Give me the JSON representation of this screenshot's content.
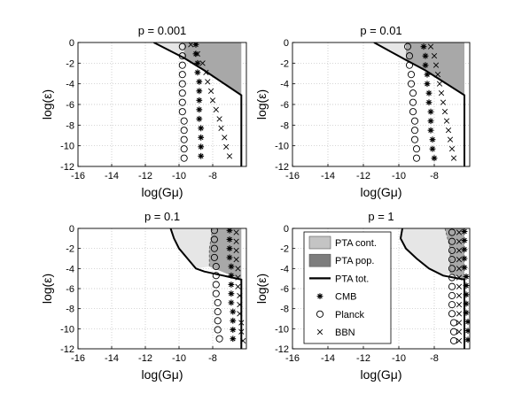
{
  "chart_data": [
    {
      "type": "scatter",
      "title": "p = 0.001",
      "xlabel": "log(Gμ)",
      "ylabel": "log(ε)",
      "xlim": [
        -16,
        -6
      ],
      "ylim": [
        -12,
        0
      ],
      "xticks": [
        "-16",
        "-14",
        "-12",
        "-10",
        "-8"
      ],
      "yticks": [
        "0",
        "-2",
        "-4",
        "-6",
        "-8",
        "-10",
        "-12"
      ],
      "grid": true,
      "regions": {
        "PTA cont.": [
          [
            -11.5,
            0
          ],
          [
            -10.3,
            -0.9
          ],
          [
            -9.7,
            -1.5
          ],
          [
            -9.7,
            0
          ]
        ],
        "PTA pop.": [
          [
            -9.7,
            0
          ],
          [
            -9.7,
            -1.5
          ],
          [
            -8.5,
            -2.7
          ],
          [
            -6.3,
            -5.1
          ],
          [
            -6.3,
            0
          ]
        ],
        "PTA tot.": [
          [
            -11.5,
            0
          ],
          [
            -9.7,
            -1.5
          ],
          [
            -8.5,
            -2.7
          ],
          [
            -6.3,
            -5.1
          ],
          [
            -6.3,
            -12
          ]
        ]
      },
      "series": [
        {
          "name": "CMB",
          "marker": "*",
          "x": [
            -9.0,
            -9.0,
            -8.9,
            -8.9,
            -8.8,
            -8.8,
            -8.8,
            -8.8,
            -8.8,
            -8.7,
            -8.7,
            -8.7,
            -8.7
          ],
          "y": [
            -0.2,
            -1.1,
            -2.0,
            -2.9,
            -3.8,
            -4.7,
            -5.6,
            -6.5,
            -7.4,
            -8.3,
            -9.2,
            -10.1,
            -11.0
          ]
        },
        {
          "name": "Planck",
          "marker": "o",
          "x": [
            -9.8,
            -9.8,
            -9.8,
            -9.8,
            -9.8,
            -9.8,
            -9.8,
            -9.8,
            -9.7,
            -9.7,
            -9.7,
            -9.7,
            -9.7
          ],
          "y": [
            -0.4,
            -1.3,
            -2.2,
            -3.1,
            -4.0,
            -4.9,
            -5.8,
            -6.7,
            -7.6,
            -8.5,
            -9.4,
            -10.3,
            -11.2
          ]
        },
        {
          "name": "BBN",
          "marker": "x",
          "x": [
            -9.3,
            -8.9,
            -8.6,
            -8.4,
            -8.3,
            -8.1,
            -8.0,
            -7.8,
            -7.6,
            -7.5,
            -7.3,
            -7.2,
            -7.0
          ],
          "y": [
            -0.2,
            -1.1,
            -2.0,
            -2.9,
            -3.8,
            -4.7,
            -5.6,
            -6.5,
            -7.4,
            -8.3,
            -9.2,
            -10.1,
            -11.0
          ]
        }
      ]
    },
    {
      "type": "scatter",
      "title": "p = 0.01",
      "xlabel": "log(Gμ)",
      "ylabel": "log(ε)",
      "xlim": [
        -16,
        -6
      ],
      "ylim": [
        -12,
        0
      ],
      "xticks": [
        "-16",
        "-14",
        "-12",
        "-10",
        "-8"
      ],
      "yticks": [
        "0",
        "-2",
        "-4",
        "-6",
        "-8",
        "-10",
        "-12"
      ],
      "grid": true,
      "regions": {
        "PTA cont.": [
          [
            -11.4,
            0
          ],
          [
            -10.4,
            -0.8
          ],
          [
            -9.6,
            -1.7
          ],
          [
            -9.6,
            0
          ]
        ],
        "PTA pop.": [
          [
            -9.6,
            0
          ],
          [
            -9.6,
            -1.7
          ],
          [
            -8.5,
            -2.7
          ],
          [
            -6.3,
            -5.1
          ],
          [
            -6.3,
            0
          ]
        ],
        "PTA tot.": [
          [
            -11.4,
            0
          ],
          [
            -9.6,
            -1.7
          ],
          [
            -8.5,
            -2.7
          ],
          [
            -6.3,
            -5.1
          ],
          [
            -6.3,
            -12
          ]
        ]
      },
      "series": [
        {
          "name": "CMB",
          "marker": "*",
          "x": [
            -8.6,
            -8.5,
            -8.5,
            -8.4,
            -8.4,
            -8.3,
            -8.3,
            -8.2,
            -8.2,
            -8.2,
            -8.1,
            -8.1,
            -8.0
          ],
          "y": [
            -0.4,
            -1.3,
            -2.2,
            -3.1,
            -4.0,
            -4.9,
            -5.8,
            -6.7,
            -7.6,
            -8.5,
            -9.4,
            -10.3,
            -11.2
          ]
        },
        {
          "name": "Planck",
          "marker": "o",
          "x": [
            -9.5,
            -9.4,
            -9.4,
            -9.3,
            -9.3,
            -9.2,
            -9.2,
            -9.2,
            -9.1,
            -9.1,
            -9.1,
            -9.0,
            -9.0
          ],
          "y": [
            -0.4,
            -1.3,
            -2.2,
            -3.1,
            -4.0,
            -4.9,
            -5.8,
            -6.7,
            -7.6,
            -8.5,
            -9.4,
            -10.3,
            -11.2
          ]
        },
        {
          "name": "BBN",
          "marker": "x",
          "x": [
            -8.2,
            -8.0,
            -7.9,
            -7.8,
            -7.7,
            -7.6,
            -7.5,
            -7.4,
            -7.3,
            -7.2,
            -7.1,
            -7.0,
            -6.9
          ],
          "y": [
            -0.4,
            -1.3,
            -2.2,
            -3.1,
            -4.0,
            -4.9,
            -5.8,
            -6.7,
            -7.6,
            -8.5,
            -9.4,
            -10.3,
            -11.2
          ]
        }
      ]
    },
    {
      "type": "scatter",
      "title": "p = 0.1",
      "xlabel": "log(Gμ)",
      "ylabel": "log(ε)",
      "xlim": [
        -16,
        -6
      ],
      "ylim": [
        -12,
        0
      ],
      "xticks": [
        "-16",
        "-14",
        "-12",
        "-10",
        "-8"
      ],
      "yticks": [
        "0",
        "-2",
        "-4",
        "-6",
        "-8",
        "-10",
        "-12"
      ],
      "grid": true,
      "regions": {
        "PTA cont.": [
          [
            -10.5,
            0
          ],
          [
            -10.3,
            -1.0
          ],
          [
            -10.0,
            -2.0
          ],
          [
            -9.5,
            -3.0
          ],
          [
            -9.0,
            -4.0
          ],
          [
            -8.2,
            -3.8
          ],
          [
            -8.2,
            -2.0
          ],
          [
            -8.0,
            0
          ]
        ],
        "PTA pop.": [
          [
            -8.0,
            0
          ],
          [
            -8.2,
            -2.0
          ],
          [
            -8.2,
            -3.8
          ],
          [
            -6.3,
            -5.1
          ],
          [
            -6.3,
            0
          ]
        ],
        "PTA tot.": [
          [
            -10.5,
            0
          ],
          [
            -10.3,
            -1.0
          ],
          [
            -10.0,
            -2.0
          ],
          [
            -9.5,
            -3.0
          ],
          [
            -9.0,
            -4.0
          ],
          [
            -8.5,
            -4.3
          ],
          [
            -6.3,
            -5.1
          ],
          [
            -6.3,
            -12
          ]
        ]
      },
      "series": [
        {
          "name": "CMB",
          "marker": "*",
          "x": [
            -7.0,
            -7.0,
            -7.0,
            -7.0,
            -6.9,
            -6.9,
            -6.9,
            -6.9,
            -6.9,
            -6.8,
            -6.8,
            -6.8,
            -6.8
          ],
          "y": [
            -0.2,
            -1.1,
            -2.0,
            -2.9,
            -3.8,
            -4.7,
            -5.6,
            -6.5,
            -7.4,
            -8.3,
            -9.2,
            -10.1,
            -11.0
          ]
        },
        {
          "name": "Planck",
          "marker": "o",
          "x": [
            -7.9,
            -7.9,
            -7.9,
            -7.9,
            -7.8,
            -7.8,
            -7.8,
            -7.8,
            -7.7,
            -7.7,
            -7.7,
            -7.7,
            -7.6
          ],
          "y": [
            -0.2,
            -1.1,
            -2.0,
            -2.9,
            -3.8,
            -4.7,
            -5.6,
            -6.5,
            -7.4,
            -8.3,
            -9.2,
            -10.1,
            -11.0
          ]
        },
        {
          "name": "BBN",
          "marker": "x",
          "x": [
            -6.6,
            -6.6,
            -6.6,
            -6.6,
            -6.5,
            -6.5,
            -6.5,
            -6.4,
            -6.4,
            -6.4,
            -6.3,
            -6.3,
            -6.2
          ],
          "y": [
            -0.4,
            -1.3,
            -2.2,
            -3.1,
            -4.0,
            -4.9,
            -5.8,
            -6.7,
            -7.6,
            -8.5,
            -9.4,
            -10.3,
            -11.2
          ]
        }
      ]
    },
    {
      "type": "scatter",
      "title": "p = 1",
      "xlabel": "log(Gμ)",
      "ylabel": "log(ε)",
      "xlim": [
        -16,
        -6
      ],
      "ylim": [
        -12,
        0
      ],
      "xticks": [
        "-16",
        "-14",
        "-12",
        "-10",
        "-8"
      ],
      "yticks": [
        "0",
        "-2",
        "-4",
        "-6",
        "-8",
        "-10",
        "-12"
      ],
      "grid": true,
      "regions": {
        "PTA cont.": [
          [
            -9.8,
            0
          ],
          [
            -9.9,
            -1.0
          ],
          [
            -9.6,
            -2.0
          ],
          [
            -9.0,
            -3.0
          ],
          [
            -8.3,
            -4.0
          ],
          [
            -7.5,
            -4.7
          ],
          [
            -7.1,
            -4.5
          ],
          [
            -7.1,
            -2.0
          ],
          [
            -7.4,
            0
          ]
        ],
        "PTA pop.": [
          [
            -7.4,
            0
          ],
          [
            -7.1,
            -2.0
          ],
          [
            -7.1,
            -4.5
          ],
          [
            -6.3,
            -5.1
          ],
          [
            -6.3,
            0
          ]
        ],
        "PTA tot.": [
          [
            -9.8,
            0
          ],
          [
            -9.9,
            -1.0
          ],
          [
            -9.6,
            -2.0
          ],
          [
            -9.0,
            -3.0
          ],
          [
            -8.3,
            -4.0
          ],
          [
            -7.5,
            -4.7
          ],
          [
            -6.3,
            -5.1
          ],
          [
            -6.3,
            -12
          ]
        ]
      },
      "series": [
        {
          "name": "CMB",
          "marker": "*",
          "x": [
            -6.3,
            -6.3,
            -6.3,
            -6.3,
            -6.3,
            -6.2,
            -6.2,
            -6.2,
            -6.2,
            -6.2,
            -6.1,
            -6.1,
            -6.1
          ],
          "y": [
            -0.3,
            -1.2,
            -2.1,
            -3.0,
            -3.9,
            -4.8,
            -5.7,
            -6.6,
            -7.5,
            -8.4,
            -9.3,
            -10.2,
            -11.1
          ]
        },
        {
          "name": "Planck",
          "marker": "o",
          "x": [
            -7.0,
            -7.0,
            -7.0,
            -7.0,
            -7.0,
            -7.0,
            -7.0,
            -7.0,
            -7.0,
            -7.0,
            -6.9,
            -6.9,
            -6.9
          ],
          "y": [
            -0.4,
            -1.3,
            -2.2,
            -3.1,
            -4.0,
            -4.9,
            -5.8,
            -6.7,
            -7.6,
            -8.5,
            -9.4,
            -10.3,
            -11.2
          ]
        },
        {
          "name": "BBN",
          "marker": "x",
          "x": [
            -6.6,
            -6.6,
            -6.6,
            -6.6,
            -6.6,
            -6.6,
            -6.6,
            -6.6,
            -6.6,
            -6.6,
            -6.6,
            -6.6,
            -6.6
          ],
          "y": [
            -0.4,
            -1.3,
            -2.2,
            -3.1,
            -4.0,
            -4.9,
            -5.8,
            -6.7,
            -7.6,
            -8.5,
            -9.4,
            -10.3,
            -11.2
          ]
        }
      ]
    }
  ],
  "legend": {
    "placement": "inside-left of bottom-right panel",
    "entries": [
      {
        "label": "PTA cont.",
        "kind": "patch",
        "color": "#c4c4c4"
      },
      {
        "label": "PTA pop.",
        "kind": "patch",
        "color": "#7d7d7d"
      },
      {
        "label": "PTA tot.",
        "kind": "line",
        "color": "#000000"
      },
      {
        "label": "CMB",
        "kind": "marker",
        "marker": "*"
      },
      {
        "label": "Planck",
        "kind": "marker",
        "marker": "o"
      },
      {
        "label": "BBN",
        "kind": "marker",
        "marker": "x"
      }
    ]
  },
  "colors": {
    "pta_cont": "#e6e6e6",
    "pta_pop": "#a8a8a8",
    "pta_tot": "#000000",
    "grid": "#bdbdbd",
    "axes": "#000000"
  }
}
